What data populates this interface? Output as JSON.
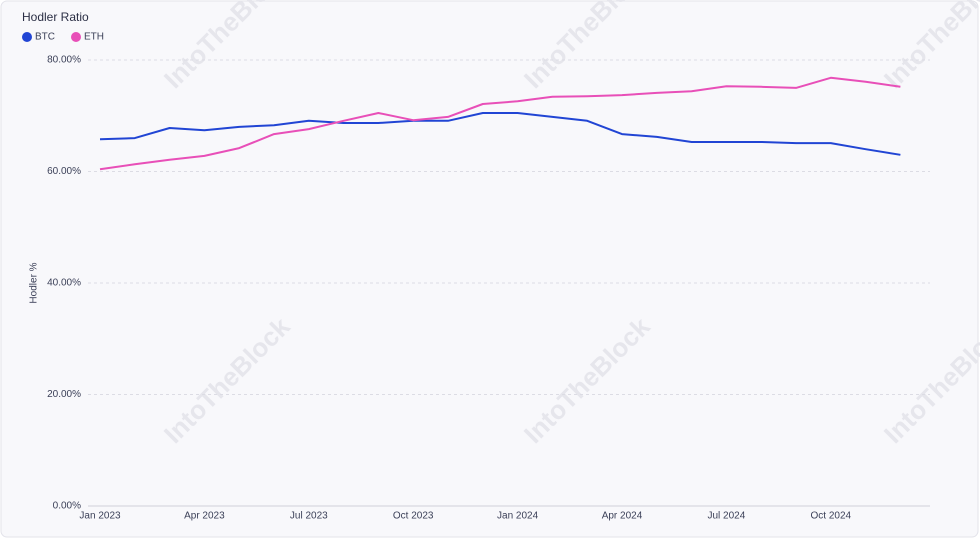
{
  "chart_data": {
    "type": "line",
    "title": "Hodler Ratio",
    "ylabel": "Hodler %",
    "watermark": "IntoTheBlock",
    "categories": [
      "Jan 2023",
      null,
      null,
      "Apr 2023",
      null,
      null,
      "Jul 2023",
      null,
      null,
      "Oct 2023",
      null,
      null,
      "Jan 2024",
      null,
      null,
      "Apr 2024",
      null,
      null,
      "Jul 2024",
      null,
      null,
      "Oct 2024",
      null,
      null
    ],
    "series": [
      {
        "name": "BTC",
        "color": "#2145d4",
        "values": [
          65.8,
          66.0,
          67.8,
          67.4,
          68.0,
          68.3,
          69.1,
          68.7,
          68.7,
          69.1,
          69.1,
          70.5,
          70.5,
          69.8,
          69.1,
          66.7,
          66.2,
          65.3,
          65.3,
          65.3,
          65.1,
          65.1,
          64.0,
          63.0
        ]
      },
      {
        "name": "ETH",
        "color": "#e84fb8",
        "values": [
          60.4,
          61.3,
          62.1,
          62.8,
          64.2,
          66.7,
          67.6,
          69.1,
          70.5,
          69.2,
          69.8,
          72.1,
          72.6,
          73.4,
          73.5,
          73.7,
          74.1,
          74.4,
          75.3,
          75.2,
          75.0,
          76.8,
          76.1,
          75.2
        ]
      }
    ],
    "ylim": [
      0,
      80
    ],
    "yticks": [
      {
        "value": 0,
        "label": "0.00%"
      },
      {
        "value": 20,
        "label": "20.00%"
      },
      {
        "value": 40,
        "label": "40.00%"
      },
      {
        "value": 60,
        "label": "60.00%"
      },
      {
        "value": 80,
        "label": "80.00%"
      }
    ],
    "grid": true,
    "legend": "top-left"
  }
}
